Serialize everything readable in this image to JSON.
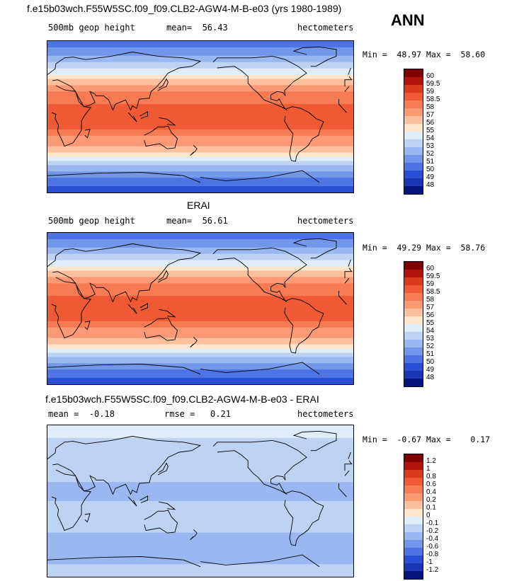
{
  "header": {
    "title_test": "f.e15b03wch.F55W5SC.f09_f09.CLB2-AGW4-M-B-e03 (yrs 1980-1989)",
    "season": "ANN",
    "title_ref": "ERAI",
    "title_diff": "f.e15b03wch.F55W5SC.f09_f09.CLB2-AGW4-M-B-e03 - ERAI"
  },
  "chart_data": [
    {
      "type": "heatmap",
      "panel": "test",
      "variable_label": "500mb geop height",
      "mean_label": "mean=",
      "mean_value": "56.43",
      "units": "hectometers",
      "min_label": "Min =",
      "min_value": "48.97",
      "max_label": "Max =",
      "max_value": "58.60",
      "colorbar_levels": [
        "60",
        "59.5",
        "59",
        "58.5",
        "58",
        "57",
        "56",
        "55",
        "54",
        "53",
        "52",
        "51",
        "50",
        "49",
        "48"
      ],
      "colorbar_colors": [
        "#7f0000",
        "#b2130e",
        "#d93b1c",
        "#ee5a34",
        "#f67a52",
        "#fa9a74",
        "#fdc09e",
        "#fee6cc",
        "#e0ecf8",
        "#bdd3f3",
        "#99b8ef",
        "#7297ea",
        "#4e74e3",
        "#2a4fd2",
        "#1a35b5",
        "#06147e"
      ],
      "zonal_profile": {
        "lat": [
          90,
          75,
          60,
          45,
          30,
          15,
          0,
          -15,
          -30,
          -45,
          -60,
          -75,
          -90
        ],
        "value": [
          50.5,
          51.5,
          53.5,
          56.0,
          58.0,
          58.5,
          58.5,
          58.5,
          57.5,
          55.5,
          52.5,
          50.5,
          49.5
        ]
      }
    },
    {
      "type": "heatmap",
      "panel": "reference",
      "variable_label": "500mb geop height",
      "mean_label": "mean=",
      "mean_value": "56.61",
      "units": "hectometers",
      "min_label": "Min =",
      "min_value": "49.29",
      "max_label": "Max =",
      "max_value": "58.76",
      "colorbar_levels": [
        "60",
        "59.5",
        "59",
        "58.5",
        "58",
        "57",
        "56",
        "55",
        "54",
        "53",
        "52",
        "51",
        "50",
        "49",
        "48"
      ],
      "colorbar_colors": [
        "#7f0000",
        "#b2130e",
        "#d93b1c",
        "#ee5a34",
        "#f67a52",
        "#fa9a74",
        "#fdc09e",
        "#fee6cc",
        "#e0ecf8",
        "#bdd3f3",
        "#99b8ef",
        "#7297ea",
        "#4e74e3",
        "#2a4fd2",
        "#1a35b5",
        "#06147e"
      ],
      "zonal_profile": {
        "lat": [
          90,
          75,
          60,
          45,
          30,
          15,
          0,
          -15,
          -30,
          -45,
          -60,
          -75,
          -90
        ],
        "value": [
          50.5,
          51.5,
          53.5,
          56.0,
          58.0,
          58.5,
          58.5,
          58.5,
          57.5,
          55.5,
          52.5,
          50.5,
          49.5
        ]
      }
    },
    {
      "type": "heatmap",
      "panel": "difference",
      "mean_label": "mean =",
      "mean_value": "-0.18",
      "rmse_label": "rmse =",
      "rmse_value": "0.21",
      "units": "hectometers",
      "min_label": "Min =",
      "min_value": "-0.67",
      "max_label": "Max =",
      "max_value": "0.17",
      "colorbar_levels": [
        "1.2",
        "1",
        "0.8",
        "0.6",
        "0.4",
        "0.2",
        "0.1",
        "0",
        "-0.1",
        "-0.2",
        "-0.4",
        "-0.6",
        "-0.8",
        "-1",
        "-1.2"
      ],
      "colorbar_colors": [
        "#7f0000",
        "#b2130e",
        "#d93b1c",
        "#ee5a34",
        "#f67a52",
        "#fa9a74",
        "#fdc09e",
        "#fee6cc",
        "#e0ecf8",
        "#bdd3f3",
        "#99b8ef",
        "#7297ea",
        "#4e74e3",
        "#2a4fd2",
        "#1a35b5",
        "#06147e"
      ],
      "zonal_profile": {
        "lat": [
          90,
          75,
          60,
          45,
          30,
          15,
          0,
          -15,
          -30,
          -45,
          -60,
          -75,
          -90
        ],
        "value": [
          -0.05,
          -0.1,
          -0.2,
          -0.2,
          -0.15,
          -0.25,
          -0.2,
          -0.15,
          -0.15,
          -0.25,
          -0.3,
          -0.2,
          -0.15
        ]
      }
    }
  ]
}
